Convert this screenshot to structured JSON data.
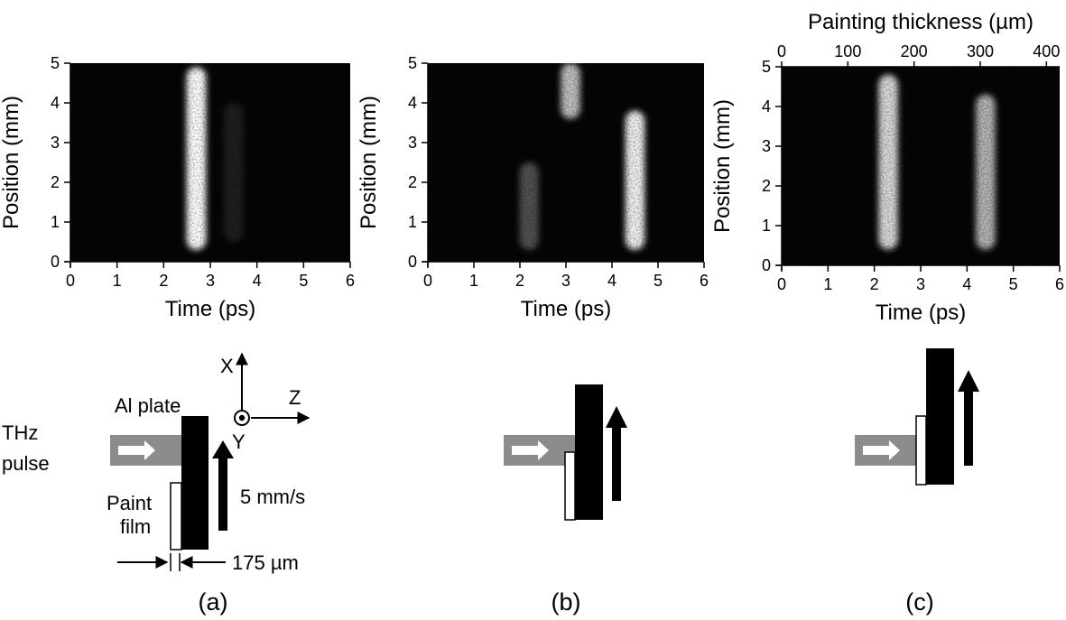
{
  "figure": {
    "panel_labels": [
      "(a)",
      "(b)",
      "(c)"
    ]
  },
  "chart_data": [
    {
      "type": "heatmap",
      "panel": "(a)",
      "title": "",
      "xlabel": "Time (ps)",
      "ylabel": "Position (mm)",
      "xlim": [
        0,
        6
      ],
      "ylim": [
        0,
        5
      ],
      "xticks": [
        "0",
        "1",
        "2",
        "3",
        "4",
        "5",
        "6"
      ],
      "yticks": [
        "0",
        "1",
        "2",
        "3",
        "4",
        "5"
      ],
      "colormap": "grayscale (black background, white signal)",
      "bright_bands": [
        {
          "time_ps": 2.7,
          "position_mm": [
            0.3,
            4.9
          ],
          "intensity": 1.0
        },
        {
          "time_ps": 3.5,
          "position_mm": [
            0.5,
            4.0
          ],
          "intensity": 0.1
        }
      ]
    },
    {
      "type": "heatmap",
      "panel": "(b)",
      "title": "",
      "xlabel": "Time (ps)",
      "ylabel": "Position (mm)",
      "xlim": [
        0,
        6
      ],
      "ylim": [
        0,
        5
      ],
      "xticks": [
        "0",
        "1",
        "2",
        "3",
        "4",
        "5",
        "6"
      ],
      "yticks": [
        "0",
        "1",
        "2",
        "3",
        "4",
        "5"
      ],
      "colormap": "grayscale (black background, white signal)",
      "bright_bands": [
        {
          "time_ps": 2.2,
          "position_mm": [
            0.3,
            2.5
          ],
          "intensity": 0.3
        },
        {
          "time_ps": 3.1,
          "position_mm": [
            3.6,
            5.0
          ],
          "intensity": 0.75
        },
        {
          "time_ps": 4.5,
          "position_mm": [
            0.3,
            3.8
          ],
          "intensity": 0.95
        }
      ]
    },
    {
      "type": "heatmap",
      "panel": "(c)",
      "title": "",
      "xlabel": "Time (ps)",
      "ylabel": "Position (mm)",
      "x2label": "Painting thickness (µm)",
      "xlim": [
        0,
        6
      ],
      "ylim": [
        0,
        5
      ],
      "x2lim": [
        0,
        420
      ],
      "xticks": [
        "0",
        "1",
        "2",
        "3",
        "4",
        "5",
        "6"
      ],
      "yticks": [
        "0",
        "1",
        "2",
        "3",
        "4",
        "5"
      ],
      "x2ticks": [
        "0",
        "100",
        "200",
        "300",
        "400"
      ],
      "colormap": "grayscale (black background, white signal)",
      "bright_bands": [
        {
          "time_ps": 2.3,
          "position_mm": [
            0.4,
            4.8
          ],
          "intensity": 0.85
        },
        {
          "time_ps": 4.4,
          "position_mm": [
            0.4,
            4.3
          ],
          "intensity": 0.7
        }
      ]
    }
  ],
  "diagram": {
    "al_plate_label": "Al plate",
    "thz_label_line1": "THz",
    "thz_label_line2": "pulse",
    "paint_label_line1": "Paint",
    "paint_label_line2": "film",
    "speed_label": "5 mm/s",
    "thickness_label": "175 µm",
    "axis_x": "X",
    "axis_y": "Y",
    "axis_z": "Z"
  }
}
